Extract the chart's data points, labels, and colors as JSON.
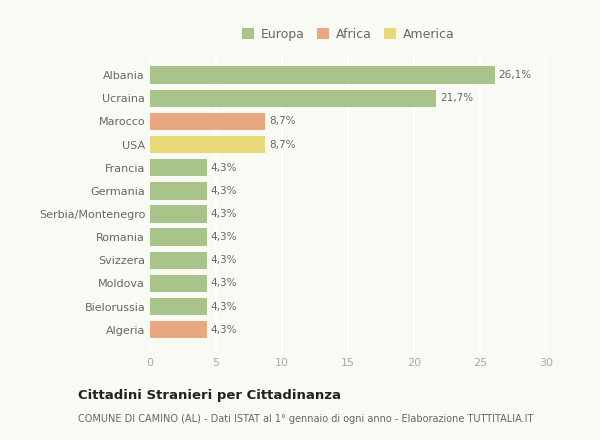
{
  "categories": [
    "Albania",
    "Ucraina",
    "Marocco",
    "USA",
    "Francia",
    "Germania",
    "Serbia/Montenegro",
    "Romania",
    "Svizzera",
    "Moldova",
    "Bielorussia",
    "Algeria"
  ],
  "values": [
    26.1,
    21.7,
    8.7,
    8.7,
    4.3,
    4.3,
    4.3,
    4.3,
    4.3,
    4.3,
    4.3,
    4.3
  ],
  "labels": [
    "26,1%",
    "21,7%",
    "8,7%",
    "8,7%",
    "4,3%",
    "4,3%",
    "4,3%",
    "4,3%",
    "4,3%",
    "4,3%",
    "4,3%",
    "4,3%"
  ],
  "colors": [
    "#a8c48a",
    "#a8c48a",
    "#e8a882",
    "#e8d878",
    "#a8c48a",
    "#a8c48a",
    "#a8c48a",
    "#a8c48a",
    "#a8c48a",
    "#a8c48a",
    "#a8c48a",
    "#e8a882"
  ],
  "legend_labels": [
    "Europa",
    "Africa",
    "America"
  ],
  "legend_colors": [
    "#a8c48a",
    "#e8a882",
    "#e8d878"
  ],
  "xlim": [
    0,
    30
  ],
  "xticks": [
    0,
    5,
    10,
    15,
    20,
    25,
    30
  ],
  "title": "Cittadini Stranieri per Cittadinanza",
  "subtitle": "COMUNE DI CAMINO (AL) - Dati ISTAT al 1° gennaio di ogni anno - Elaborazione TUTTITALIA.IT",
  "background_color": "#fafaf5",
  "grid_color": "#ffffff",
  "bar_height": 0.75
}
